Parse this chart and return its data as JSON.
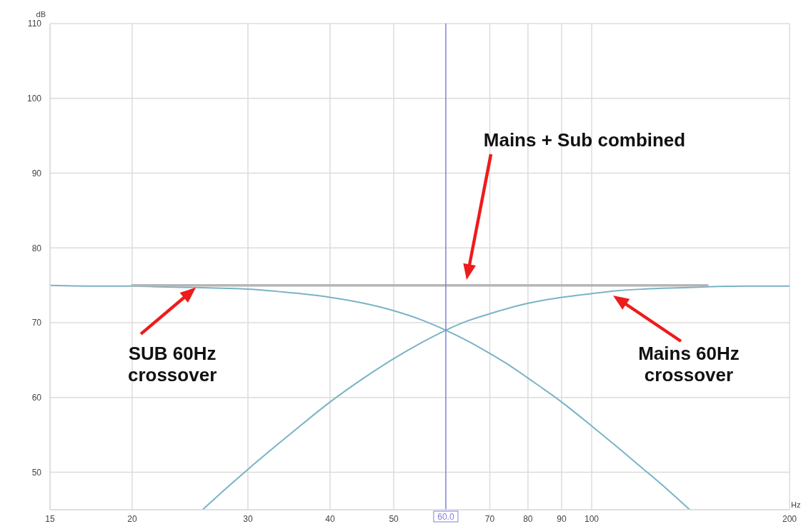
{
  "chart_data": {
    "type": "line",
    "xlabel": "Hz",
    "ylabel": "dB",
    "log": "x",
    "xlim": [
      15,
      200
    ],
    "xticks": [
      15,
      20,
      30,
      40,
      50,
      70,
      80,
      90,
      100,
      200
    ],
    "ylim": [
      45,
      110
    ],
    "yticks": [
      50,
      60,
      70,
      80,
      90,
      100,
      110
    ],
    "grid": true,
    "marker": "none",
    "line_style": "solid",
    "series": [
      {
        "color": "#7ab3c6",
        "x": [
          15,
          18,
          20,
          22,
          25,
          28,
          30,
          35,
          40,
          45,
          50,
          55,
          60,
          65,
          70,
          75,
          80,
          90,
          100,
          110,
          120,
          130,
          141
        ],
        "values": [
          75,
          74.9,
          74.9,
          74.8,
          74.7,
          74.6,
          74.5,
          74,
          73.4,
          72.6,
          71.6,
          70.4,
          69,
          67.5,
          65.9,
          64.3,
          62.6,
          59.4,
          56.2,
          53.2,
          50.4,
          47.8,
          45
        ]
      },
      {
        "color": "#7ab3c6",
        "x": [
          25.6,
          28,
          30,
          35,
          40,
          45,
          50,
          55,
          60,
          65,
          70,
          80,
          90,
          100,
          110,
          120,
          140,
          150,
          170,
          200
        ],
        "values": [
          45,
          48.1,
          50.4,
          55.3,
          59.4,
          62.6,
          65.2,
          67.3,
          69,
          70.3,
          71.2,
          72.6,
          73.4,
          73.9,
          74.3,
          74.5,
          74.7,
          74.8,
          74.9,
          74.9
        ]
      },
      {
        "color": "#b5b5b5",
        "x": [
          20,
          150
        ],
        "values": [
          75,
          75
        ]
      }
    ],
    "ref_lines": [
      {
        "axis": "x",
        "value": 60,
        "label": "60.0",
        "color": "#7f7fe0"
      }
    ],
    "annotations": [
      "Mains + Sub combined",
      {
        "text": "SUB 60Hz crossover",
        "x": 25,
        "y": 74.7
      },
      "Mains 60Hz crossover"
    ]
  }
}
